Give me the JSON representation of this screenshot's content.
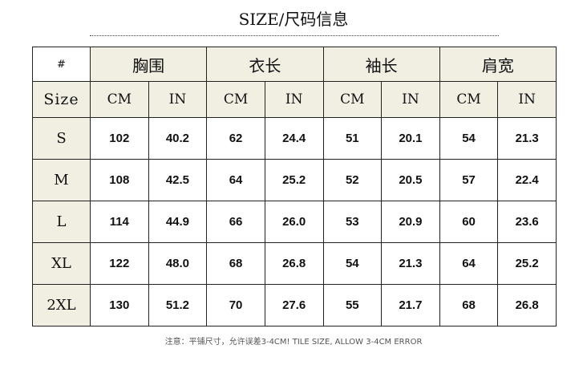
{
  "header": {
    "title": "SIZE/尺码信息"
  },
  "table": {
    "corner": "#",
    "groups": [
      "胸围",
      "衣长",
      "袖长",
      "肩宽"
    ],
    "unit_label": "Size",
    "units": [
      "CM",
      "IN",
      "CM",
      "IN",
      "CM",
      "IN",
      "CM",
      "IN"
    ],
    "rows": [
      [
        "S",
        "102",
        "40.2",
        "62",
        "24.4",
        "51",
        "20.1",
        "54",
        "21.3"
      ],
      [
        "M",
        "108",
        "42.5",
        "64",
        "25.2",
        "52",
        "20.5",
        "57",
        "22.4"
      ],
      [
        "L",
        "114",
        "44.9",
        "66",
        "26.0",
        "53",
        "20.9",
        "60",
        "23.6"
      ],
      [
        "XL",
        "122",
        "48.0",
        "68",
        "26.8",
        "54",
        "21.3",
        "64",
        "25.2"
      ],
      [
        "2XL",
        "130",
        "51.2",
        "70",
        "27.6",
        "55",
        "21.7",
        "68",
        "26.8"
      ]
    ]
  },
  "note": "注意：平铺尺寸，允许误差3-4CM! TILE SIZE, ALLOW 3-4CM ERROR"
}
